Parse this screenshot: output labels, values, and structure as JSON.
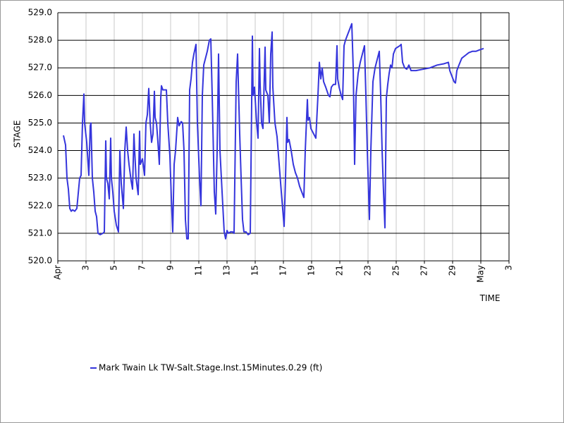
{
  "chart_data": {
    "type": "line",
    "xlabel": "TIME",
    "ylabel": "STAGE",
    "grid": true,
    "legend": "bottom",
    "xlim": [
      1,
      33
    ],
    "ylim": [
      520,
      529
    ],
    "xticks": [
      {
        "value": 1,
        "label": "Apr"
      },
      3,
      5,
      7,
      9,
      11,
      13,
      15,
      17,
      19,
      21,
      23,
      25,
      27,
      29,
      {
        "value": 31,
        "label": "May"
      },
      {
        "value": 33,
        "label": "3"
      }
    ],
    "yticks": [
      {
        "value": 520,
        "label": "520.0"
      },
      {
        "value": 521,
        "label": "521.0"
      },
      {
        "value": 522,
        "label": "522.0"
      },
      {
        "value": 523,
        "label": "523.0"
      },
      {
        "value": 524,
        "label": "524.0"
      },
      {
        "value": 525,
        "label": "525.0"
      },
      {
        "value": 526,
        "label": "526.0"
      },
      {
        "value": 527,
        "label": "527.0"
      },
      {
        "value": 528,
        "label": "528.0"
      },
      {
        "value": 529,
        "label": "529.0"
      }
    ],
    "x": [
      1.4,
      1.55,
      1.65,
      1.75,
      1.85,
      1.95,
      2.05,
      2.2,
      2.35,
      2.55,
      2.65,
      2.75,
      2.85,
      2.9,
      3.05,
      3.2,
      3.3,
      3.35,
      3.45,
      3.55,
      3.65,
      3.75,
      3.85,
      4.0,
      4.2,
      4.3,
      4.4,
      4.45,
      4.55,
      4.65,
      4.75,
      4.8,
      4.9,
      5.0,
      5.15,
      5.3,
      5.4,
      5.5,
      5.65,
      5.75,
      5.85,
      5.95,
      6.05,
      6.2,
      6.3,
      6.4,
      6.45,
      6.55,
      6.7,
      6.8,
      6.85,
      7.0,
      7.1,
      7.15,
      7.25,
      7.35,
      7.45,
      7.55,
      7.65,
      7.75,
      7.85,
      7.9,
      8.0,
      8.1,
      8.2,
      8.3,
      8.35,
      8.45,
      8.7,
      8.8,
      8.95,
      9.05,
      9.15,
      9.25,
      9.35,
      9.5,
      9.6,
      9.75,
      9.85,
      9.95,
      10.05,
      10.15,
      10.25,
      10.35,
      10.45,
      10.55,
      10.65,
      10.8,
      10.9,
      11.05,
      11.15,
      11.25,
      11.35,
      11.45,
      11.6,
      11.75,
      11.85,
      11.95,
      12.1,
      12.2,
      12.3,
      12.4,
      12.5,
      12.65,
      12.8,
      12.9,
      13.0,
      13.1,
      13.25,
      13.4,
      13.5,
      13.65,
      13.75,
      13.8,
      13.9,
      14.0,
      14.1,
      14.2,
      14.35,
      14.5,
      14.65,
      14.8,
      14.85,
      14.95,
      15.1,
      15.2,
      15.3,
      15.35,
      15.45,
      15.55,
      15.7,
      15.75,
      15.9,
      16.0,
      16.1,
      16.2,
      16.25,
      16.4,
      16.55,
      16.7,
      16.85,
      17.05,
      17.15,
      17.25,
      17.3,
      17.4,
      17.55,
      17.7,
      17.85,
      18.0,
      18.15,
      18.3,
      18.45,
      18.55,
      18.7,
      18.75,
      18.85,
      18.95,
      19.15,
      19.3,
      19.45,
      19.55,
      19.65,
      19.75,
      19.85,
      20.0,
      20.2,
      20.3,
      20.4,
      20.55,
      20.7,
      20.8,
      20.85,
      20.95,
      21.1,
      21.2,
      21.3,
      21.4,
      21.55,
      21.7,
      21.85,
      21.95,
      22.05,
      22.15,
      22.3,
      22.45,
      22.6,
      22.75,
      22.85,
      22.95,
      23.1,
      23.2,
      23.35,
      23.5,
      23.65,
      23.8,
      23.9,
      24.0,
      24.1,
      24.2,
      24.3,
      24.4,
      24.5,
      24.6,
      24.7,
      24.8,
      24.95,
      25.1,
      25.25,
      25.35,
      25.45,
      25.6,
      25.75,
      25.9,
      26.05,
      26.4,
      26.9,
      27.4,
      27.9,
      28.4,
      28.7,
      28.8,
      28.95,
      29.1,
      29.2,
      29.3,
      29.45,
      29.65,
      29.9,
      30.15,
      30.4,
      30.65,
      30.9,
      31.2
    ],
    "series": [
      {
        "name": "Mark Twain Lk TW-Salt.Stage.Inst.15Minutes.0.29 (ft)",
        "color": "#3535dc",
        "values": [
          524.55,
          524.2,
          523.0,
          522.6,
          521.9,
          521.8,
          521.85,
          521.8,
          521.9,
          523.0,
          523.1,
          525.0,
          526.05,
          525.0,
          524.3,
          523.1,
          524.9,
          525.0,
          523.0,
          522.5,
          521.8,
          521.6,
          521.0,
          520.95,
          521.0,
          521.05,
          524.35,
          523.0,
          522.8,
          522.25,
          524.45,
          523.0,
          522.5,
          521.8,
          521.3,
          521.05,
          524.0,
          522.8,
          521.9,
          524.0,
          524.85,
          524.0,
          523.5,
          522.9,
          522.6,
          524.6,
          524.0,
          523.0,
          522.4,
          524.7,
          523.5,
          523.7,
          523.3,
          523.1,
          525.0,
          525.3,
          526.25,
          525.0,
          524.3,
          524.6,
          526.15,
          525.2,
          525.0,
          524.3,
          523.5,
          525.9,
          526.35,
          526.2,
          526.2,
          525.0,
          523.8,
          522.3,
          521.05,
          523.5,
          524.0,
          525.2,
          524.9,
          525.05,
          525.0,
          524.0,
          521.5,
          520.8,
          520.8,
          526.2,
          526.6,
          527.2,
          527.5,
          527.85,
          525.0,
          523.0,
          522.0,
          526.0,
          527.1,
          527.3,
          527.6,
          528.0,
          528.05,
          526.0,
          522.5,
          521.7,
          524.0,
          527.5,
          524.0,
          522.5,
          521.05,
          520.8,
          521.1,
          521.0,
          521.05,
          521.05,
          521.0,
          526.5,
          527.5,
          526.5,
          524.6,
          523.0,
          521.5,
          521.05,
          521.05,
          520.95,
          521.0,
          528.15,
          526.0,
          526.3,
          525.0,
          524.45,
          527.7,
          526.4,
          525.0,
          524.8,
          527.75,
          526.2,
          526.0,
          525.0,
          527.5,
          528.3,
          526.3,
          525.0,
          524.5,
          523.5,
          522.5,
          521.25,
          523.0,
          525.2,
          524.3,
          524.4,
          524.0,
          523.5,
          523.2,
          523.0,
          522.7,
          522.5,
          522.3,
          524.0,
          525.85,
          525.1,
          525.2,
          524.8,
          524.6,
          524.45,
          526.0,
          527.2,
          526.6,
          527.0,
          526.5,
          526.3,
          526.0,
          525.95,
          526.3,
          526.4,
          526.4,
          527.8,
          526.6,
          526.3,
          526.0,
          525.85,
          527.8,
          528.0,
          528.2,
          528.4,
          528.6,
          527.0,
          523.5,
          526.0,
          526.8,
          527.2,
          527.5,
          527.8,
          526.0,
          524.0,
          521.5,
          524.0,
          526.5,
          527.0,
          527.3,
          527.6,
          526.0,
          524.0,
          522.5,
          521.2,
          525.9,
          526.4,
          526.8,
          527.1,
          527.0,
          527.5,
          527.7,
          527.75,
          527.8,
          527.85,
          527.2,
          527.0,
          526.95,
          527.1,
          526.9,
          526.9,
          526.95,
          527.0,
          527.1,
          527.15,
          527.2,
          526.9,
          526.7,
          526.5,
          526.45,
          526.9,
          527.1,
          527.35,
          527.45,
          527.55,
          527.6,
          527.6,
          527.65,
          527.7
        ]
      }
    ]
  }
}
